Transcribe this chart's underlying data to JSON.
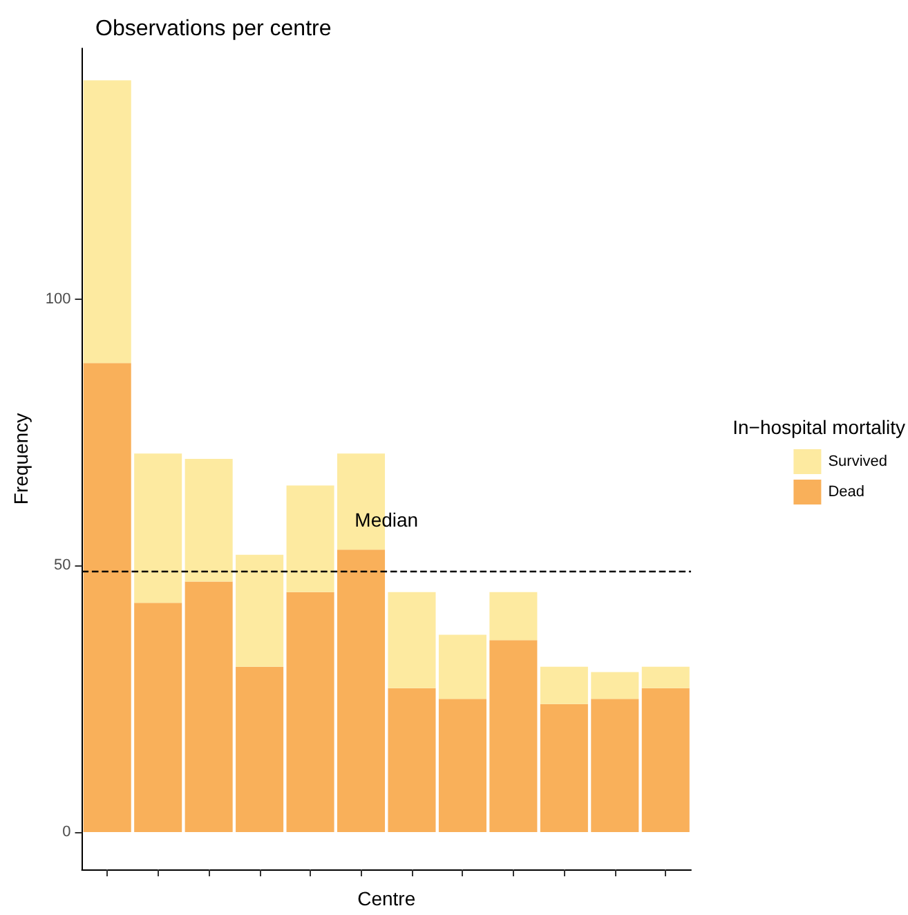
{
  "chart_data": {
    "type": "bar",
    "title": "Observations per centre",
    "xlabel": "Centre",
    "ylabel": "Frequency",
    "legend_title": "In−hospital mortality",
    "categories": [
      null,
      null,
      null,
      null,
      null,
      null,
      null,
      null,
      null,
      null,
      null,
      null
    ],
    "stacked": true,
    "series": [
      {
        "name": "Dead",
        "color": "#f9b05a",
        "values": [
          88,
          43,
          47,
          31,
          45,
          53,
          27,
          25,
          36,
          24,
          25,
          27
        ]
      },
      {
        "name": "Survived",
        "color": "#fdeaa0",
        "values": [
          53,
          28,
          23,
          21,
          20,
          18,
          18,
          12,
          9,
          7,
          5,
          4
        ]
      }
    ],
    "ylim": [
      -7,
      147
    ],
    "yticks": [
      0,
      50,
      100
    ],
    "grid": false,
    "legend": "right",
    "ref_lines": [
      {
        "axis": "y",
        "value": 49,
        "label": "Median",
        "line_style": "dashed",
        "color": "#000000"
      }
    ]
  }
}
